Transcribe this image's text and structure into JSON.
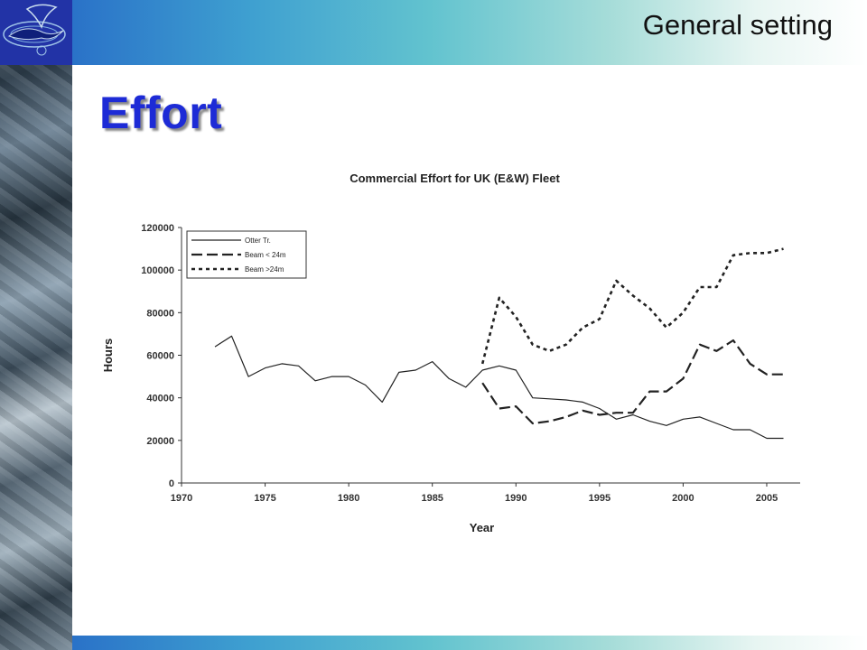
{
  "header": {
    "section_title": "General setting"
  },
  "slide": {
    "title": "Effort"
  },
  "colors": {
    "title_blue": "#1d2bd6",
    "band_start": "#2a72c8",
    "band_end": "#ffffff",
    "logo_bg": "#2233a6"
  },
  "logo": {
    "icon": "fish-globe-logo-icon"
  },
  "chart_data": {
    "type": "line",
    "title": "Commercial Effort for UK (E&W) Fleet",
    "xlabel": "Year",
    "ylabel": "Hours",
    "xlim": [
      1970,
      2007
    ],
    "ylim": [
      0,
      120000
    ],
    "xticks": [
      1970,
      1975,
      1980,
      1985,
      1990,
      1995,
      2000,
      2005
    ],
    "yticks": [
      0,
      20000,
      40000,
      60000,
      80000,
      100000,
      120000
    ],
    "legend_position": "top-left",
    "grid": false,
    "series": [
      {
        "name": "Otter Tr.",
        "style": "solid",
        "x": [
          1972,
          1973,
          1974,
          1975,
          1976,
          1977,
          1978,
          1979,
          1980,
          1981,
          1982,
          1983,
          1984,
          1985,
          1986,
          1987,
          1988,
          1989,
          1990,
          1991,
          1992,
          1993,
          1994,
          1995,
          1996,
          1997,
          1998,
          1999,
          2000,
          2001,
          2002,
          2003,
          2004,
          2005,
          2006
        ],
        "values": [
          64000,
          69000,
          50000,
          54000,
          56000,
          55000,
          48000,
          50000,
          50000,
          46000,
          38000,
          52000,
          53000,
          57000,
          49000,
          45000,
          53000,
          55000,
          53000,
          40000,
          39500,
          39000,
          38000,
          35000,
          30000,
          32000,
          29000,
          27000,
          30000,
          31000,
          28000,
          25000,
          25000,
          21000,
          21000
        ]
      },
      {
        "name": "Beam < 24m",
        "style": "dashed",
        "x": [
          1988,
          1989,
          1990,
          1991,
          1992,
          1993,
          1994,
          1995,
          1996,
          1997,
          1998,
          1999,
          2000,
          2001,
          2002,
          2003,
          2004,
          2005,
          2006
        ],
        "values": [
          47000,
          35000,
          36000,
          28000,
          29000,
          31000,
          34000,
          32000,
          33000,
          33000,
          43000,
          43000,
          49000,
          65000,
          62000,
          67000,
          56000,
          51000,
          51000
        ]
      },
      {
        "name": "Beam >24m",
        "style": "dotted",
        "x": [
          1988,
          1989,
          1990,
          1991,
          1992,
          1993,
          1994,
          1995,
          1996,
          1997,
          1998,
          1999,
          2000,
          2001,
          2002,
          2003,
          2004,
          2005,
          2006
        ],
        "values": [
          56000,
          87000,
          78000,
          65000,
          62000,
          65000,
          73000,
          77000,
          95000,
          88000,
          82000,
          73000,
          80000,
          92000,
          92000,
          107000,
          108000,
          108000,
          110000
        ]
      }
    ]
  }
}
